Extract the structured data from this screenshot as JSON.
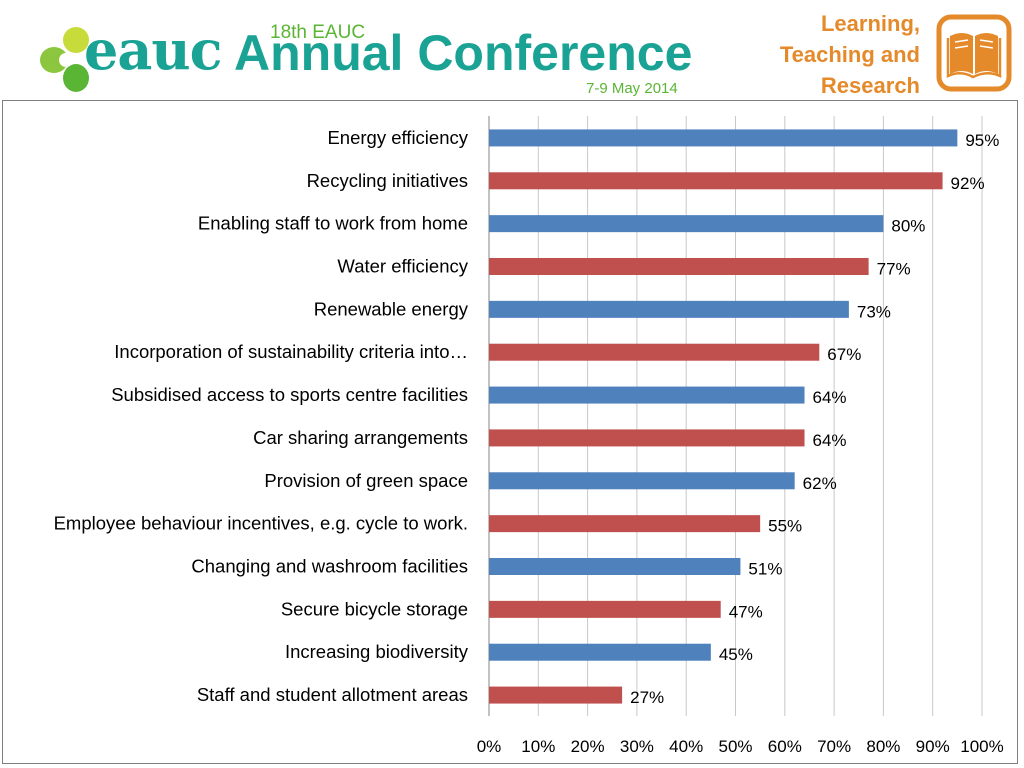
{
  "header": {
    "logo_text": "eauc",
    "edition": "18th EAUC",
    "title": "Annual Conference",
    "dates": "7-9 May 2014",
    "theme_lines": [
      "Learning,",
      "Teaching and",
      "Research"
    ],
    "theme_icon": "open-book-icon"
  },
  "colors": {
    "blue": "#4f81bd",
    "red": "#c0504d",
    "brand_teal": "#1aa394",
    "brand_green": "#5bb535",
    "theme_orange": "#e58a2b",
    "grid": "#c8c8c8"
  },
  "chart_data": {
    "type": "bar",
    "orientation": "horizontal",
    "categories": [
      "Energy efficiency",
      "Recycling initiatives",
      "Enabling staff to work from home",
      "Water efficiency",
      "Renewable energy",
      "Incorporation of sustainability criteria into…",
      "Subsidised access to sports centre facilities",
      "Car sharing arrangements",
      "Provision of green space",
      "Employee behaviour incentives, e.g. cycle to work.",
      "Changing and washroom facilities",
      "Secure bicycle storage",
      "Increasing biodiversity",
      "Staff and student allotment areas"
    ],
    "values": [
      95,
      92,
      80,
      77,
      73,
      67,
      64,
      64,
      62,
      55,
      51,
      47,
      45,
      27
    ],
    "value_labels": [
      "95%",
      "92%",
      "80%",
      "77%",
      "73%",
      "67%",
      "64%",
      "64%",
      "62%",
      "55%",
      "51%",
      "47%",
      "45%",
      "27%"
    ],
    "bar_colors": [
      "#4f81bd",
      "#c0504d",
      "#4f81bd",
      "#c0504d",
      "#4f81bd",
      "#c0504d",
      "#4f81bd",
      "#c0504d",
      "#4f81bd",
      "#c0504d",
      "#4f81bd",
      "#c0504d",
      "#4f81bd",
      "#c0504d"
    ],
    "xlim": [
      0,
      100
    ],
    "x_ticks": [
      "0%",
      "10%",
      "20%",
      "30%",
      "40%",
      "50%",
      "60%",
      "70%",
      "80%",
      "90%",
      "100%"
    ],
    "grid": true,
    "legend": "none",
    "title": "",
    "xlabel": "",
    "ylabel": ""
  }
}
